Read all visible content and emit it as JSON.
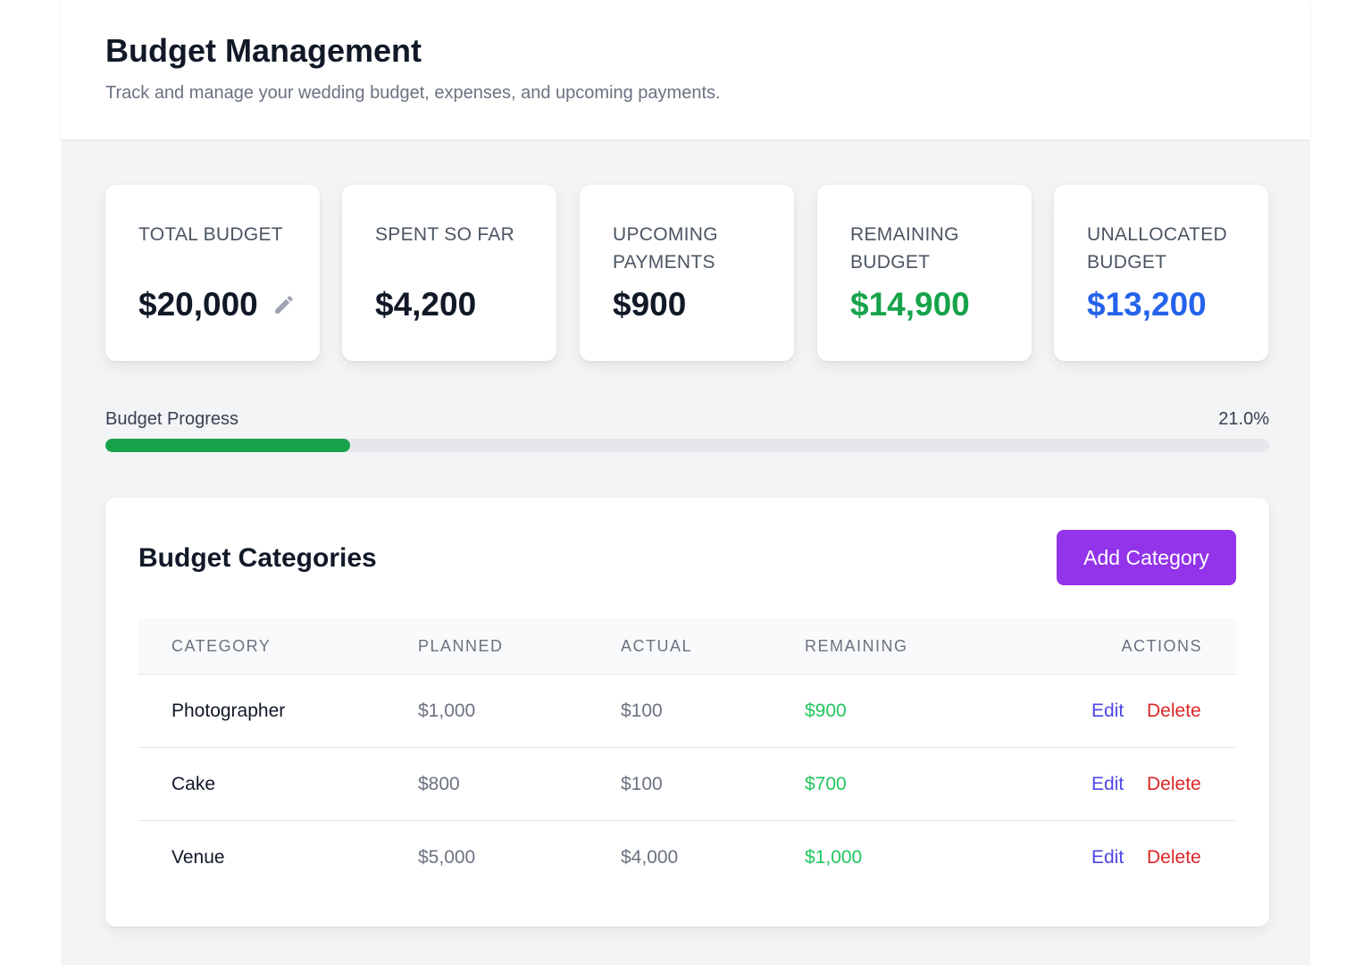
{
  "header": {
    "title": "Budget Management",
    "subtitle": "Track and manage your wedding budget, expenses, and upcoming payments."
  },
  "summary": {
    "total_budget": {
      "label": "Total Budget",
      "value": "$20,000"
    },
    "spent": {
      "label": "Spent So Far",
      "value": "$4,200"
    },
    "upcoming": {
      "label": "Upcoming Payments",
      "value": "$900"
    },
    "remaining": {
      "label": "Remaining Budget",
      "value": "$14,900",
      "color": "#16a34a"
    },
    "unallocated": {
      "label": "Unallocated Budget",
      "value": "$13,200",
      "color": "#2563eb"
    }
  },
  "progress": {
    "label": "Budget Progress",
    "percent_text": "21.0%",
    "percent": 21.0,
    "color": "#16a34a"
  },
  "categories": {
    "title": "Budget Categories",
    "add_button": "Add Category",
    "columns": [
      "Category",
      "Planned",
      "Actual",
      "Remaining",
      "Actions"
    ],
    "rows": [
      {
        "category": "Photographer",
        "planned": "$1,000",
        "actual": "$100",
        "remaining": "$900"
      },
      {
        "category": "Cake",
        "planned": "$800",
        "actual": "$100",
        "remaining": "$700"
      },
      {
        "category": "Venue",
        "planned": "$5,000",
        "actual": "$4,000",
        "remaining": "$1,000"
      }
    ],
    "edit_label": "Edit",
    "delete_label": "Delete"
  },
  "icons": {
    "edit_total": "pencil-icon"
  },
  "colors": {
    "accent": "#9333ea",
    "edit": "#4f46e5",
    "delete": "#dc2626",
    "positive": "#22c55e"
  }
}
